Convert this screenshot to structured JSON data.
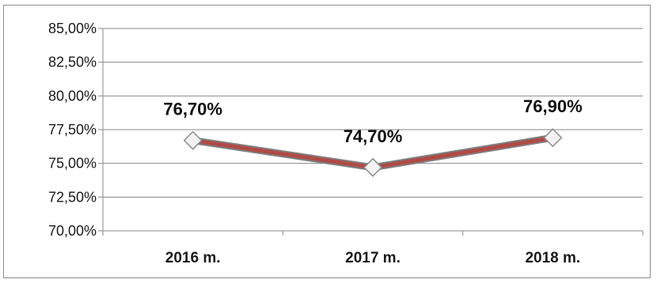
{
  "chart_data": {
    "type": "line",
    "categories": [
      "2016 m.",
      "2017 m.",
      "2018 m."
    ],
    "values": [
      76.7,
      74.7,
      76.9
    ],
    "data_labels": [
      "76,70%",
      "74,70%",
      "76,90%"
    ],
    "ylim": [
      70,
      85
    ],
    "y_ticks": [
      70,
      72.5,
      75,
      77.5,
      80,
      82.5,
      85
    ],
    "y_tick_labels": [
      "70,00%",
      "72,50%",
      "75,00%",
      "77,50%",
      "80,00%",
      "82,50%",
      "85,00%"
    ],
    "grid": true,
    "legend": "none",
    "colors": {
      "line": "#b04a46",
      "line_edge": "#7f7f7f",
      "marker_fill": "#f2f2f2",
      "marker_stroke": "#8c8c8c",
      "grid": "#8a8a8a"
    }
  }
}
